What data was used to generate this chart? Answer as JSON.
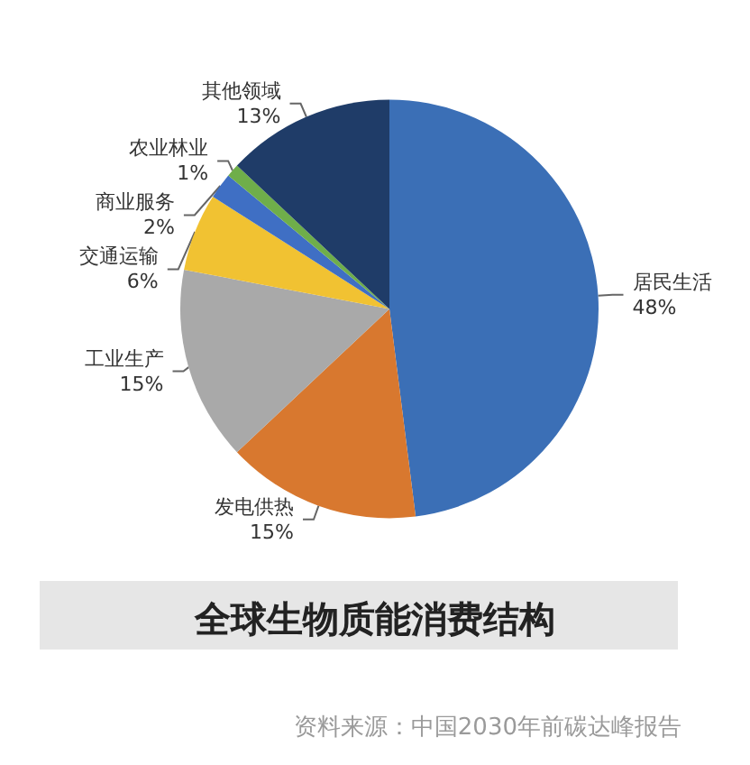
{
  "chart_data": {
    "type": "pie",
    "title": "全球生物质能消费结构",
    "categories": [
      "居民生活",
      "发电供热",
      "工业生产",
      "交通运输",
      "商业服务",
      "农业林业",
      "其他领域"
    ],
    "values": [
      48,
      15,
      15,
      6,
      2,
      1,
      13
    ],
    "value_labels": [
      "48%",
      "15%",
      "15%",
      "6%",
      "2%",
      "1%",
      "13%"
    ],
    "colors": [
      "#3b6fb6",
      "#d8782f",
      "#a9a9a9",
      "#f1c232",
      "#3f6fc4",
      "#6fae4a",
      "#1f3c68"
    ],
    "legend": false,
    "annotations": [
      "资料来源：中国2030年前碳达峰报告"
    ]
  }
}
